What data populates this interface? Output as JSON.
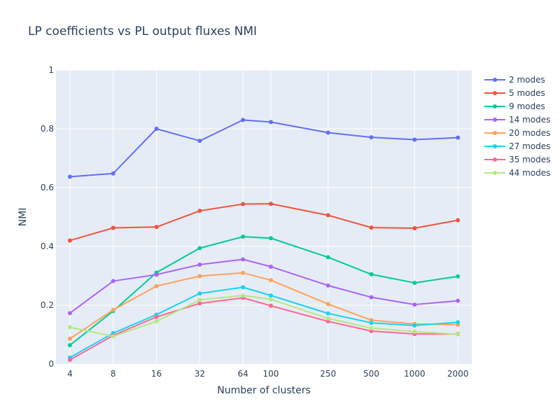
{
  "chart_data": {
    "type": "line",
    "title": "LP coefficients vs PL output fluxes NMI",
    "xlabel": "Number of clusters",
    "ylabel": "NMI",
    "x_scale": "log",
    "x": [
      4,
      8,
      16,
      32,
      64,
      100,
      250,
      500,
      1000,
      2000
    ],
    "x_tick_labels": [
      "4",
      "8",
      "16",
      "32",
      "64",
      "100",
      "250",
      "500",
      "1000",
      "2000"
    ],
    "ylim": [
      0,
      1
    ],
    "y_ticks": [
      0,
      0.2,
      0.4,
      0.6,
      0.8,
      1
    ],
    "y_tick_labels": [
      "0",
      "0.2",
      "0.4",
      "0.6",
      "0.8",
      "1"
    ],
    "grid": true,
    "legend_position": "top-right",
    "plot_bgcolor": "#e5ecf6",
    "series": [
      {
        "name": "2 modes",
        "color": "#636efa",
        "values": [
          0.637,
          0.648,
          0.8,
          0.759,
          0.83,
          0.823,
          0.787,
          0.771,
          0.763,
          0.77
        ]
      },
      {
        "name": "5 modes",
        "color": "#ef553b",
        "values": [
          0.42,
          0.463,
          0.466,
          0.521,
          0.544,
          0.545,
          0.506,
          0.464,
          0.462,
          0.489
        ]
      },
      {
        "name": "9 modes",
        "color": "#00cc96",
        "values": [
          0.064,
          0.18,
          0.311,
          0.394,
          0.433,
          0.428,
          0.363,
          0.305,
          0.276,
          0.298
        ]
      },
      {
        "name": "14 modes",
        "color": "#ab63fa",
        "values": [
          0.173,
          0.282,
          0.304,
          0.338,
          0.356,
          0.331,
          0.267,
          0.227,
          0.202,
          0.215
        ]
      },
      {
        "name": "20 modes",
        "color": "#ffa15a",
        "values": [
          0.086,
          0.184,
          0.265,
          0.299,
          0.31,
          0.285,
          0.204,
          0.149,
          0.136,
          0.134
        ]
      },
      {
        "name": "27 modes",
        "color": "#19d3f3",
        "values": [
          0.022,
          0.105,
          0.168,
          0.24,
          0.261,
          0.233,
          0.172,
          0.14,
          0.131,
          0.142
        ]
      },
      {
        "name": "35 modes",
        "color": "#ff6692",
        "values": [
          0.014,
          0.097,
          0.16,
          0.206,
          0.225,
          0.198,
          0.145,
          0.112,
          0.102,
          0.102
        ]
      },
      {
        "name": "44 modes",
        "color": "#b6e880",
        "values": [
          0.125,
          0.094,
          0.145,
          0.218,
          0.233,
          0.22,
          0.155,
          0.122,
          0.11,
          0.101
        ]
      }
    ]
  }
}
